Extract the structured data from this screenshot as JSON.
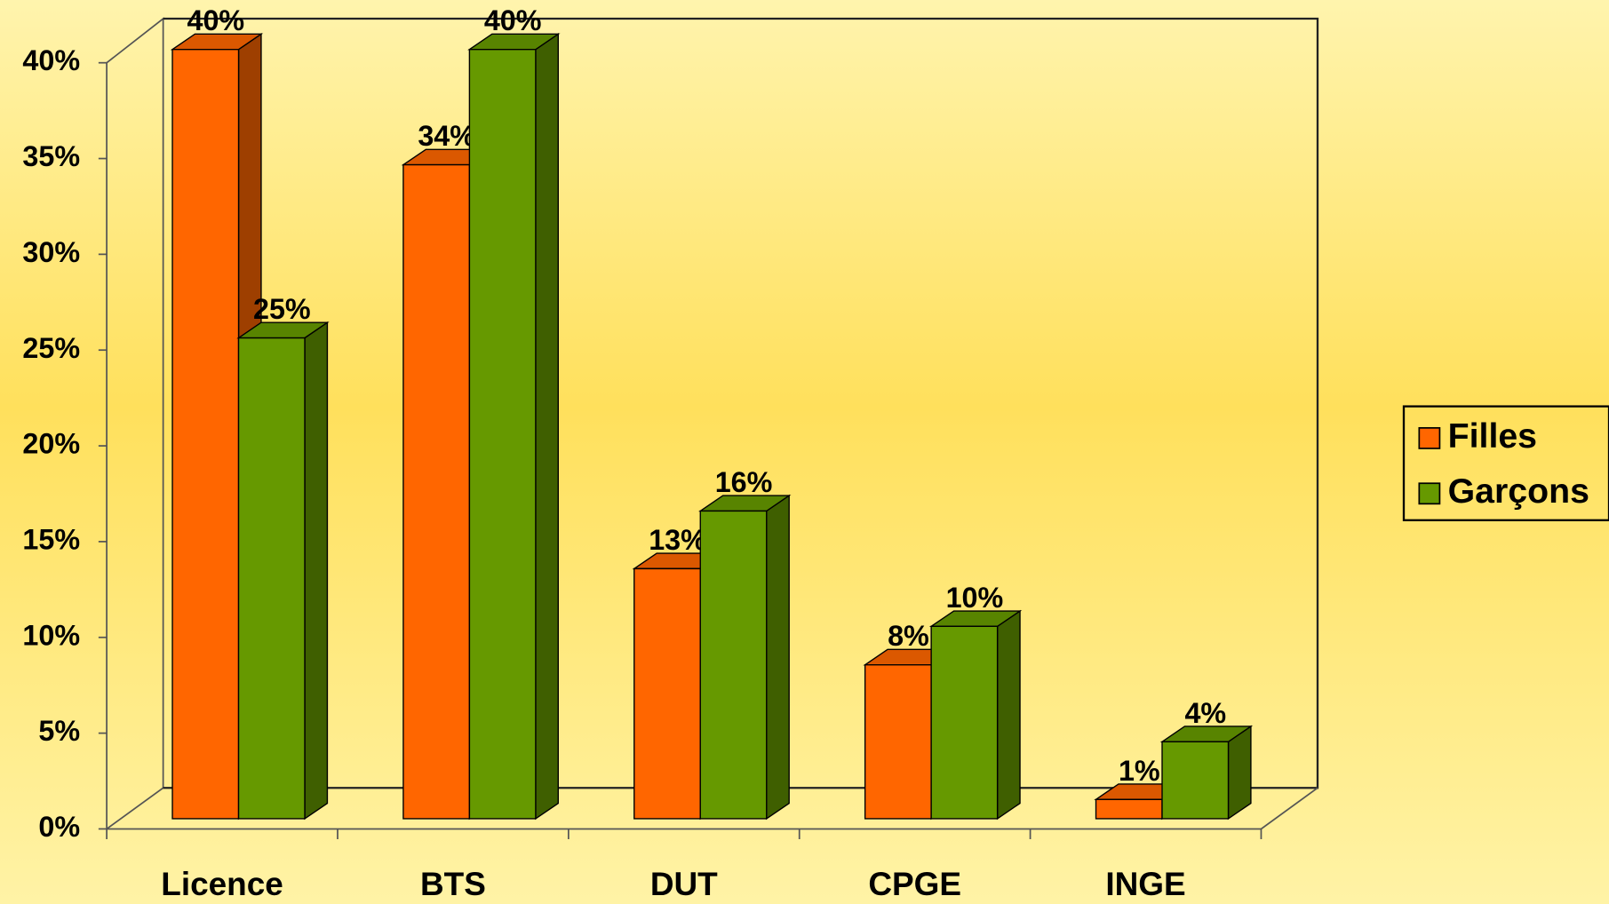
{
  "chart_data": {
    "type": "bar3d",
    "categories": [
      "Licence",
      "BTS",
      "DUT",
      "CPGE",
      "INGE"
    ],
    "series": [
      {
        "name": "Filles",
        "color": "#ff6600",
        "values": [
          40,
          34,
          13,
          8,
          1
        ],
        "value_labels": [
          "40%",
          "34%",
          "13%",
          "8%",
          "1%"
        ]
      },
      {
        "name": "Garçons",
        "color": "#669900",
        "values": [
          25,
          40,
          16,
          10,
          4
        ],
        "value_labels": [
          "25%",
          "40%",
          "16%",
          "10%",
          "4%"
        ]
      }
    ],
    "ylim": [
      0,
      40
    ],
    "yticks": [
      {
        "value": 0,
        "label": "0%"
      },
      {
        "value": 5,
        "label": "5%"
      },
      {
        "value": 10,
        "label": "10%"
      },
      {
        "value": 15,
        "label": "15%"
      },
      {
        "value": 20,
        "label": "20%"
      },
      {
        "value": 25,
        "label": "25%"
      },
      {
        "value": 30,
        "label": "30%"
      },
      {
        "value": 35,
        "label": "35%"
      },
      {
        "value": 40,
        "label": "40%"
      }
    ],
    "legend": "right"
  }
}
